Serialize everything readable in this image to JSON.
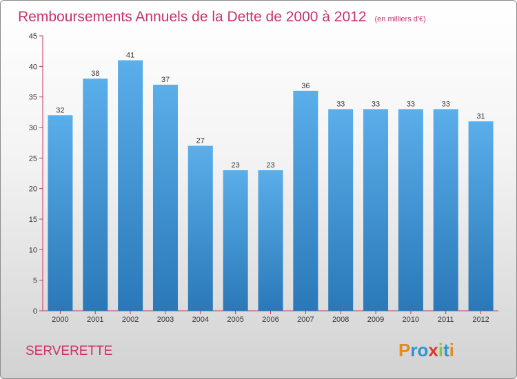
{
  "chart_data": {
    "type": "bar",
    "title": "Remboursements Annuels de la Dette de 2000 à 2012",
    "subtitle": "(en milliers d'€)",
    "categories": [
      "2000",
      "2001",
      "2002",
      "2003",
      "2004",
      "2005",
      "2006",
      "2007",
      "2008",
      "2009",
      "2010",
      "2011",
      "2012"
    ],
    "values": [
      32,
      38,
      41,
      37,
      27,
      23,
      23,
      36,
      33,
      33,
      33,
      33,
      31
    ],
    "ylim": [
      0,
      45
    ],
    "yticks": [
      0,
      5,
      10,
      15,
      20,
      25,
      30,
      35,
      40,
      45
    ],
    "xlabel": "",
    "ylabel": "",
    "grid": false,
    "colors": {
      "bar_top": "#5aaeea",
      "bar_bottom": "#2a78b8",
      "axis": "#c8336a",
      "title": "#c8336a"
    }
  },
  "place_name": "SERVERETTE",
  "logo": {
    "text": "Proxiti",
    "letters": [
      {
        "char": "P",
        "color": "#e58a1f"
      },
      {
        "char": "r",
        "color": "#2f93d0"
      },
      {
        "char": "o",
        "color": "#2f93d0"
      },
      {
        "char": "x",
        "color": "#e0372b"
      },
      {
        "char": "i",
        "color": "#8cc23f"
      },
      {
        "char": "t",
        "color": "#2f93d0"
      },
      {
        "char": "i",
        "color": "#e58a1f"
      }
    ]
  }
}
